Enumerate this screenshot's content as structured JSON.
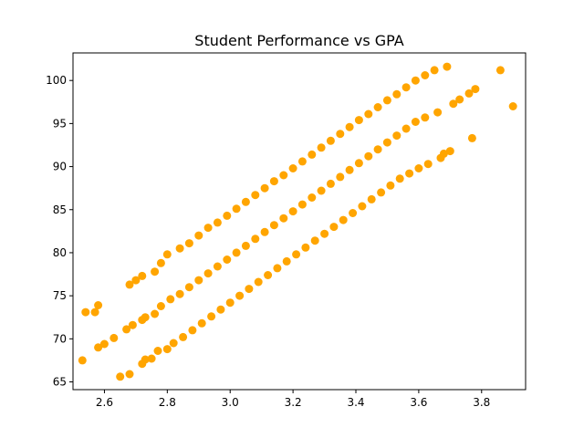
{
  "chart_data": {
    "type": "scatter",
    "title": "Student Performance vs GPA",
    "xlabel": "",
    "ylabel": "",
    "xlim": [
      2.5,
      3.94
    ],
    "ylim": [
      64.1,
      103.2
    ],
    "xticks": [
      2.6,
      2.8,
      3.0,
      3.2,
      3.4,
      3.6,
      3.8
    ],
    "xtick_labels": [
      "2.6",
      "2.8",
      "3.0",
      "3.2",
      "3.4",
      "3.6",
      "3.8"
    ],
    "yticks": [
      65,
      70,
      75,
      80,
      85,
      90,
      95,
      100
    ],
    "ytick_labels": [
      "65",
      "70",
      "75",
      "80",
      "85",
      "90",
      "95",
      "100"
    ],
    "grid": false,
    "marker_color": "#FFA500",
    "series": [
      {
        "points": [
          [
            2.54,
            73.1
          ],
          [
            2.57,
            73.1
          ],
          [
            2.58,
            73.9
          ],
          [
            2.68,
            76.3
          ],
          [
            2.7,
            76.8
          ],
          [
            2.72,
            77.3
          ],
          [
            2.76,
            77.8
          ],
          [
            2.78,
            78.8
          ],
          [
            2.8,
            79.8
          ],
          [
            2.84,
            80.5
          ],
          [
            2.87,
            81.1
          ],
          [
            2.9,
            82.0
          ],
          [
            2.93,
            82.9
          ],
          [
            2.96,
            83.5
          ],
          [
            2.99,
            84.3
          ],
          [
            3.02,
            85.1
          ],
          [
            3.05,
            85.9
          ],
          [
            3.08,
            86.7
          ],
          [
            3.11,
            87.5
          ],
          [
            3.14,
            88.3
          ],
          [
            3.17,
            89.0
          ],
          [
            3.2,
            89.8
          ],
          [
            3.23,
            90.6
          ],
          [
            3.26,
            91.4
          ],
          [
            3.29,
            92.2
          ],
          [
            3.32,
            93.0
          ],
          [
            3.35,
            93.8
          ],
          [
            3.38,
            94.6
          ],
          [
            3.41,
            95.4
          ],
          [
            3.44,
            96.1
          ],
          [
            3.47,
            96.9
          ],
          [
            3.5,
            97.7
          ],
          [
            3.53,
            98.4
          ],
          [
            3.56,
            99.2
          ],
          [
            3.59,
            100.0
          ],
          [
            3.62,
            100.6
          ],
          [
            3.65,
            101.2
          ],
          [
            3.69,
            101.6
          ],
          [
            3.86,
            101.2
          ]
        ]
      },
      {
        "points": [
          [
            2.58,
            69.0
          ],
          [
            2.6,
            69.4
          ],
          [
            2.63,
            70.1
          ],
          [
            2.67,
            71.1
          ],
          [
            2.69,
            71.6
          ],
          [
            2.72,
            72.2
          ],
          [
            2.73,
            72.5
          ],
          [
            2.76,
            72.9
          ],
          [
            2.78,
            73.8
          ],
          [
            2.81,
            74.6
          ],
          [
            2.84,
            75.2
          ],
          [
            2.87,
            76.0
          ],
          [
            2.9,
            76.8
          ],
          [
            2.93,
            77.6
          ],
          [
            2.96,
            78.4
          ],
          [
            2.99,
            79.2
          ],
          [
            3.02,
            80.0
          ],
          [
            3.05,
            80.8
          ],
          [
            3.08,
            81.6
          ],
          [
            3.11,
            82.4
          ],
          [
            3.14,
            83.2
          ],
          [
            3.17,
            84.0
          ],
          [
            3.2,
            84.8
          ],
          [
            3.23,
            85.6
          ],
          [
            3.26,
            86.4
          ],
          [
            3.29,
            87.2
          ],
          [
            3.32,
            88.0
          ],
          [
            3.35,
            88.8
          ],
          [
            3.38,
            89.6
          ],
          [
            3.41,
            90.4
          ],
          [
            3.44,
            91.2
          ],
          [
            3.47,
            92.0
          ],
          [
            3.5,
            92.8
          ],
          [
            3.53,
            93.6
          ],
          [
            3.56,
            94.4
          ],
          [
            3.59,
            95.2
          ],
          [
            3.62,
            95.7
          ],
          [
            3.66,
            96.3
          ],
          [
            3.71,
            97.3
          ],
          [
            3.73,
            97.8
          ],
          [
            3.76,
            98.5
          ],
          [
            3.78,
            99.0
          ],
          [
            3.77,
            93.3
          ],
          [
            3.9,
            97.0
          ]
        ]
      },
      {
        "points": [
          [
            2.53,
            67.5
          ],
          [
            2.65,
            65.6
          ],
          [
            2.68,
            65.9
          ],
          [
            2.72,
            67.1
          ],
          [
            2.73,
            67.6
          ],
          [
            2.75,
            67.7
          ],
          [
            2.77,
            68.6
          ],
          [
            2.8,
            68.8
          ],
          [
            2.82,
            69.5
          ],
          [
            2.85,
            70.2
          ],
          [
            2.88,
            71.0
          ],
          [
            2.91,
            71.8
          ],
          [
            2.94,
            72.6
          ],
          [
            2.97,
            73.4
          ],
          [
            3.0,
            74.2
          ],
          [
            3.03,
            75.0
          ],
          [
            3.06,
            75.8
          ],
          [
            3.09,
            76.6
          ],
          [
            3.12,
            77.4
          ],
          [
            3.15,
            78.2
          ],
          [
            3.18,
            79.0
          ],
          [
            3.21,
            79.8
          ],
          [
            3.24,
            80.6
          ],
          [
            3.27,
            81.4
          ],
          [
            3.3,
            82.2
          ],
          [
            3.33,
            83.0
          ],
          [
            3.36,
            83.8
          ],
          [
            3.39,
            84.6
          ],
          [
            3.42,
            85.4
          ],
          [
            3.45,
            86.2
          ],
          [
            3.48,
            87.0
          ],
          [
            3.51,
            87.8
          ],
          [
            3.54,
            88.6
          ],
          [
            3.57,
            89.2
          ],
          [
            3.6,
            89.8
          ],
          [
            3.63,
            90.3
          ],
          [
            3.67,
            91.0
          ],
          [
            3.68,
            91.5
          ],
          [
            3.7,
            91.8
          ]
        ]
      }
    ]
  }
}
